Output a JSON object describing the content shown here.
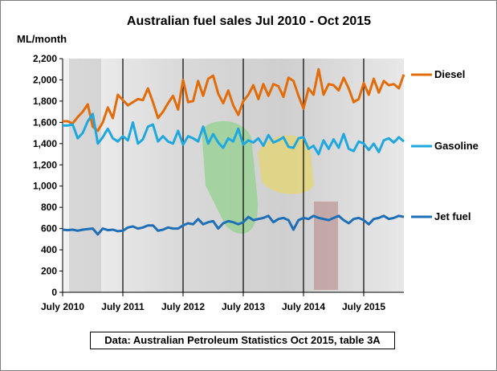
{
  "chart_data": {
    "type": "line",
    "title": "Australian fuel sales Jul 2010 - Oct 2015",
    "ylabel": "ML/month",
    "ylim": [
      0,
      2200
    ],
    "yticks": [
      0,
      200,
      400,
      600,
      800,
      1000,
      1200,
      1400,
      1600,
      1800,
      2000,
      2200
    ],
    "ytick_labels": [
      "0",
      "200",
      "400",
      "600",
      "800",
      "1,000",
      "1,200",
      "1,400",
      "1,600",
      "1,800",
      "2,000",
      "2,200"
    ],
    "xtick_labels": [
      "July 2010",
      "July 2011",
      "July 2012",
      "July 2013",
      "July 2014",
      "July 2015"
    ],
    "grid": "vertical lines at each July",
    "legend": "right, labels at line ends",
    "series": [
      {
        "name": "Diesel",
        "color": "#E36C0A",
        "values": [
          1610,
          1610,
          1590,
          1650,
          1700,
          1770,
          1560,
          1520,
          1600,
          1740,
          1640,
          1860,
          1810,
          1760,
          1790,
          1820,
          1810,
          1920,
          1790,
          1640,
          1700,
          1780,
          1850,
          1720,
          2000,
          1790,
          1800,
          1990,
          1850,
          2010,
          2040,
          1870,
          1780,
          1900,
          1760,
          1670,
          1800,
          1860,
          1950,
          1820,
          1960,
          1850,
          1960,
          1940,
          1840,
          2020,
          1990,
          1850,
          1730,
          1920,
          1860,
          2100,
          1860,
          1960,
          1950,
          1900,
          2020,
          1920,
          1790,
          1820,
          1970,
          1860,
          2010,
          1880,
          1990,
          1950,
          1960,
          1920,
          2050
        ]
      },
      {
        "name": "Gasoline",
        "color": "#1FA8DF",
        "values": [
          1570,
          1570,
          1580,
          1450,
          1500,
          1610,
          1680,
          1400,
          1460,
          1540,
          1450,
          1420,
          1470,
          1430,
          1600,
          1400,
          1440,
          1560,
          1580,
          1420,
          1470,
          1420,
          1400,
          1520,
          1390,
          1470,
          1450,
          1420,
          1560,
          1400,
          1490,
          1410,
          1360,
          1450,
          1420,
          1540,
          1390,
          1430,
          1410,
          1450,
          1380,
          1480,
          1410,
          1430,
          1460,
          1370,
          1360,
          1450,
          1460,
          1350,
          1380,
          1300,
          1430,
          1350,
          1440,
          1360,
          1490,
          1350,
          1330,
          1420,
          1400,
          1340,
          1400,
          1320,
          1430,
          1450,
          1410,
          1460,
          1420
        ]
      },
      {
        "name": "Jet fuel",
        "color": "#1F6FB6",
        "values": [
          590,
          585,
          590,
          580,
          590,
          595,
          600,
          545,
          600,
          585,
          590,
          575,
          580,
          610,
          620,
          600,
          610,
          630,
          630,
          580,
          590,
          610,
          600,
          600,
          630,
          650,
          640,
          690,
          640,
          660,
          670,
          600,
          650,
          670,
          660,
          640,
          660,
          710,
          680,
          690,
          700,
          720,
          660,
          690,
          700,
          680,
          590,
          680,
          700,
          690,
          720,
          700,
          690,
          680,
          700,
          720,
          680,
          650,
          690,
          700,
          680,
          640,
          690,
          700,
          720,
          690,
          700,
          720,
          710
        ]
      }
    ]
  },
  "source_note": "Data: Australian Petroleum Statistics Oct 2015, table 3A"
}
